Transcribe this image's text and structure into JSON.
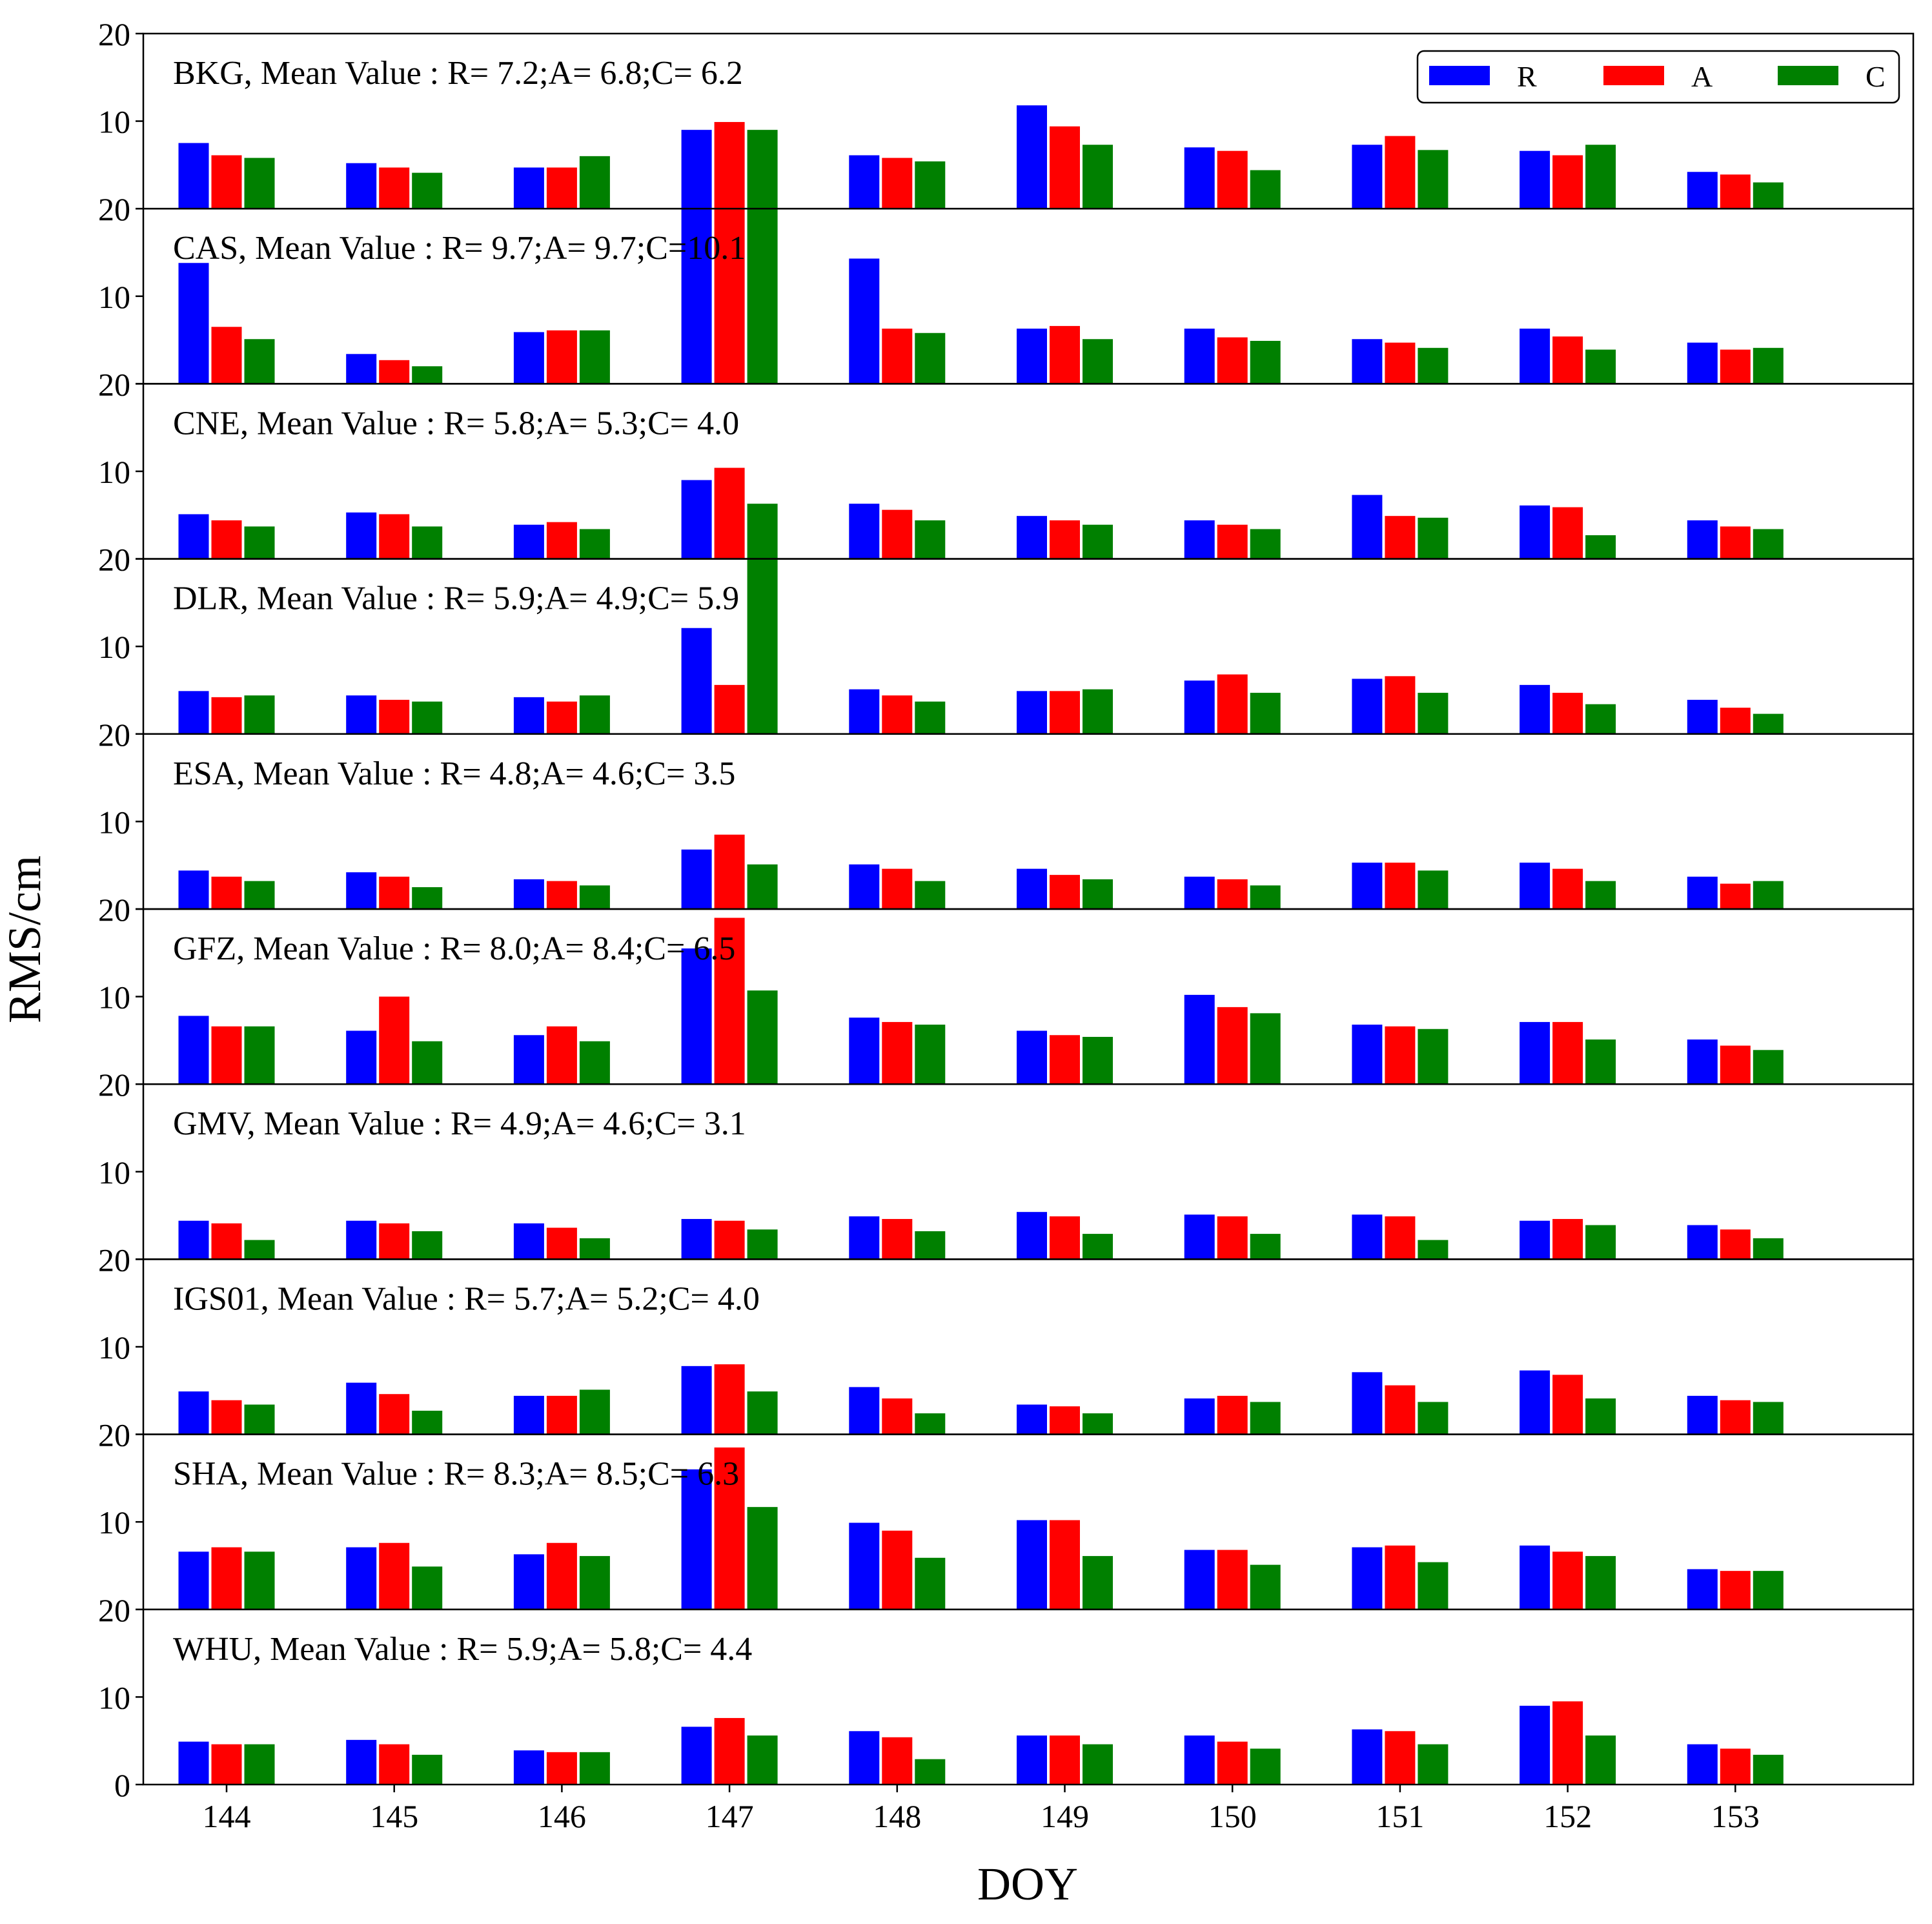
{
  "chart_data": {
    "type": "bar",
    "ylabel": "RMS/cm",
    "xlabel": "DOY",
    "categories": [
      "144",
      "145",
      "146",
      "147",
      "148",
      "149",
      "150",
      "151",
      "152",
      "153"
    ],
    "ylim": [
      0,
      20
    ],
    "yticks": [
      "0",
      "10",
      "20"
    ],
    "colors": {
      "R": "#0000ff",
      "A": "#ff0000",
      "C": "#008000"
    },
    "legend": {
      "position": "top-right",
      "entries": [
        "R",
        "A",
        "C"
      ]
    },
    "panels": [
      {
        "title": "BKG,  Mean Value : R= 7.2;A= 6.8;C= 6.2",
        "series": [
          {
            "name": "R",
            "values": [
              7.5,
              5.2,
              4.7,
              9.0,
              6.1,
              11.8,
              7.0,
              7.3,
              6.6,
              4.2
            ]
          },
          {
            "name": "A",
            "values": [
              6.1,
              4.7,
              4.7,
              9.9,
              5.8,
              9.4,
              6.6,
              8.3,
              6.1,
              3.9
            ]
          },
          {
            "name": "C",
            "values": [
              5.8,
              4.1,
              6.0,
              9.0,
              5.4,
              7.3,
              4.4,
              6.7,
              7.3,
              3.0
            ]
          }
        ]
      },
      {
        "title": "CAS,  Mean Value : R= 9.7;A= 9.7;C=10.1",
        "series": [
          {
            "name": "R",
            "values": [
              13.8,
              3.4,
              5.9,
              20.5,
              14.3,
              6.3,
              6.3,
              5.1,
              6.3,
              4.7
            ]
          },
          {
            "name": "A",
            "values": [
              6.5,
              2.7,
              6.1,
              20.5,
              6.3,
              6.6,
              5.3,
              4.7,
              5.4,
              3.9
            ]
          },
          {
            "name": "C",
            "values": [
              5.1,
              2.0,
              6.1,
              20.5,
              5.8,
              5.1,
              4.9,
              4.1,
              3.9,
              4.1
            ]
          }
        ]
      },
      {
        "title": "CNE,  Mean Value : R= 5.8;A= 5.3;C= 4.0",
        "series": [
          {
            "name": "R",
            "values": [
              5.1,
              5.3,
              3.9,
              9.0,
              6.3,
              4.9,
              4.4,
              7.3,
              6.1,
              4.4
            ]
          },
          {
            "name": "A",
            "values": [
              4.4,
              5.1,
              4.2,
              10.4,
              5.6,
              4.4,
              3.9,
              4.9,
              5.9,
              3.7
            ]
          },
          {
            "name": "C",
            "values": [
              3.7,
              3.7,
              3.4,
              6.3,
              4.4,
              3.9,
              3.4,
              4.7,
              2.7,
              3.4
            ]
          }
        ]
      },
      {
        "title": "DLR,  Mean Value : R= 5.9;A= 4.9;C= 5.9",
        "series": [
          {
            "name": "R",
            "values": [
              4.9,
              4.4,
              4.2,
              12.1,
              5.1,
              4.9,
              6.1,
              6.3,
              5.6,
              3.9
            ]
          },
          {
            "name": "A",
            "values": [
              4.2,
              3.9,
              3.7,
              5.6,
              4.4,
              4.9,
              6.8,
              6.6,
              4.7,
              3.0
            ]
          },
          {
            "name": "C",
            "values": [
              4.4,
              3.7,
              4.4,
              20.0,
              3.7,
              5.1,
              4.7,
              4.7,
              3.4,
              2.3
            ]
          }
        ]
      },
      {
        "title": "ESA,  Mean Value : R= 4.8;A= 4.6;C= 3.5",
        "series": [
          {
            "name": "R",
            "values": [
              4.4,
              4.2,
              3.4,
              6.8,
              5.1,
              4.6,
              3.7,
              5.3,
              5.3,
              3.7
            ]
          },
          {
            "name": "A",
            "values": [
              3.7,
              3.7,
              3.2,
              8.5,
              4.6,
              3.9,
              3.4,
              5.3,
              4.6,
              2.9
            ]
          },
          {
            "name": "C",
            "values": [
              3.2,
              2.5,
              2.7,
              5.1,
              3.2,
              3.4,
              2.7,
              4.4,
              3.2,
              3.2
            ]
          }
        ]
      },
      {
        "title": "GFZ,  Mean Value : R= 8.0;A= 8.4;C= 6.5",
        "series": [
          {
            "name": "R",
            "values": [
              7.8,
              6.1,
              5.6,
              15.5,
              7.6,
              6.1,
              10.2,
              6.8,
              7.1,
              5.1
            ]
          },
          {
            "name": "A",
            "values": [
              6.6,
              10.0,
              6.6,
              19.0,
              7.1,
              5.6,
              8.8,
              6.6,
              7.1,
              4.4
            ]
          },
          {
            "name": "C",
            "values": [
              6.6,
              4.9,
              4.9,
              10.7,
              6.8,
              5.4,
              8.1,
              6.3,
              5.1,
              3.9
            ]
          }
        ]
      },
      {
        "title": "GMV,  Mean Value : R= 4.9;A= 4.6;C= 3.1",
        "series": [
          {
            "name": "R",
            "values": [
              4.4,
              4.4,
              4.1,
              4.6,
              4.9,
              5.4,
              5.1,
              5.1,
              4.4,
              3.9
            ]
          },
          {
            "name": "A",
            "values": [
              4.1,
              4.1,
              3.6,
              4.4,
              4.6,
              4.9,
              4.9,
              4.9,
              4.6,
              3.4
            ]
          },
          {
            "name": "C",
            "values": [
              2.2,
              3.2,
              2.4,
              3.4,
              3.2,
              2.9,
              2.9,
              2.2,
              3.9,
              2.4
            ]
          }
        ]
      },
      {
        "title": "IGS01,  Mean Value : R= 5.7;A= 5.2;C= 4.0",
        "series": [
          {
            "name": "R",
            "values": [
              4.9,
              5.9,
              4.4,
              7.8,
              5.4,
              3.4,
              4.1,
              7.1,
              7.3,
              4.4
            ]
          },
          {
            "name": "A",
            "values": [
              3.9,
              4.6,
              4.4,
              8.0,
              4.1,
              3.2,
              4.4,
              5.6,
              6.8,
              3.9
            ]
          },
          {
            "name": "C",
            "values": [
              3.4,
              2.7,
              5.1,
              4.9,
              2.4,
              2.4,
              3.7,
              3.7,
              4.1,
              3.7
            ]
          }
        ]
      },
      {
        "title": "SHA,  Mean Value : R= 8.3;A= 8.5;C= 6.3",
        "series": [
          {
            "name": "R",
            "values": [
              6.6,
              7.1,
              6.3,
              16.0,
              9.9,
              10.2,
              6.8,
              7.1,
              7.3,
              4.6
            ]
          },
          {
            "name": "A",
            "values": [
              7.1,
              7.6,
              7.6,
              18.5,
              9.0,
              10.2,
              6.8,
              7.3,
              6.6,
              4.4
            ]
          },
          {
            "name": "C",
            "values": [
              6.6,
              4.9,
              6.1,
              11.7,
              5.9,
              6.1,
              5.1,
              5.4,
              6.1,
              4.4
            ]
          }
        ]
      },
      {
        "title": "WHU,  Mean Value : R= 5.9;A= 5.8;C= 4.4",
        "series": [
          {
            "name": "R",
            "values": [
              4.9,
              5.1,
              3.9,
              6.6,
              6.1,
              5.6,
              5.6,
              6.3,
              9.0,
              4.6
            ]
          },
          {
            "name": "A",
            "values": [
              4.6,
              4.6,
              3.7,
              7.6,
              5.4,
              5.6,
              4.9,
              6.1,
              9.5,
              4.1
            ]
          },
          {
            "name": "C",
            "values": [
              4.6,
              3.4,
              3.7,
              5.6,
              2.9,
              4.6,
              4.1,
              4.6,
              5.6,
              3.4
            ]
          }
        ]
      }
    ]
  }
}
